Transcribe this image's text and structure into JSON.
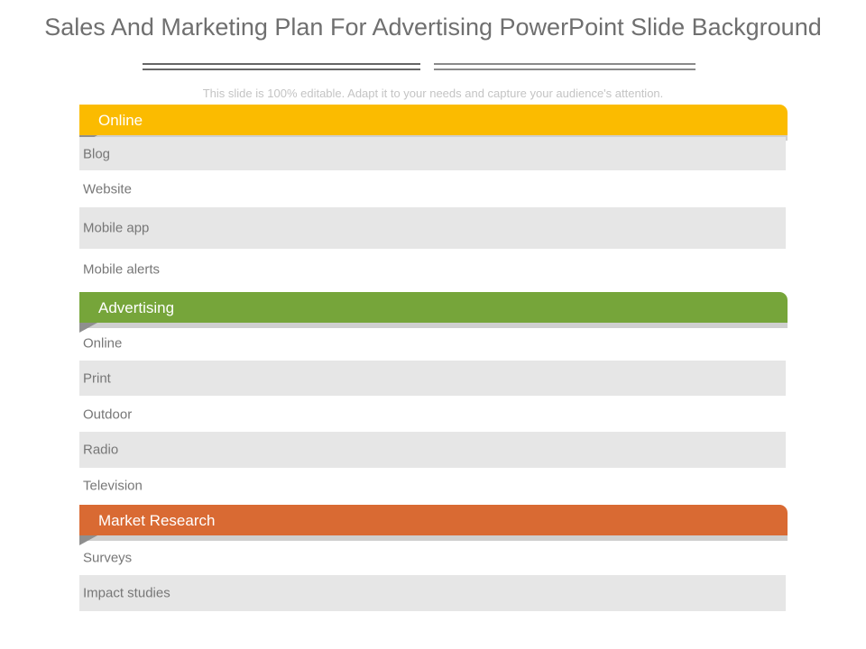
{
  "slide": {
    "title": "Sales And Marketing Plan For Advertising PowerPoint Slide Background",
    "subtitle": "This slide is 100% editable. Adapt it to your needs and capture your audience's attention."
  },
  "sections": [
    {
      "label": "Online",
      "color": "#fbbb00",
      "items": [
        "Blog",
        "Website",
        "Mobile app",
        "Mobile alerts"
      ]
    },
    {
      "label": "Advertising",
      "color": "#76a53a",
      "items": [
        "Online",
        "Print",
        "Outdoor",
        "Radio",
        "Television"
      ]
    },
    {
      "label": "Market Research",
      "color": "#d96a33",
      "items": [
        "Surveys",
        "Impact studies"
      ]
    }
  ]
}
